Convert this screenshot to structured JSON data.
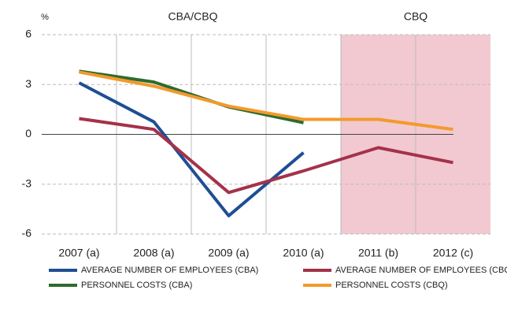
{
  "chart_data": {
    "type": "line",
    "y_unit": "%",
    "region_labels": [
      "CBA/CBQ",
      "CBQ"
    ],
    "categories": [
      "2007 (a)",
      "2008 (a)",
      "2009 (a)",
      "2010 (a)",
      "2011 (b)",
      "2012 (c)"
    ],
    "series": [
      {
        "name": "AVERAGE NUMBER OF EMPLOYEES (CBA)",
        "color": "#1f4e94",
        "values": [
          3.1,
          0.75,
          -4.9,
          -1.1,
          null,
          null
        ]
      },
      {
        "name": "AVERAGE NUMBER OF EMPLOYEES (CBQ)",
        "color": "#a3324a",
        "values": [
          0.95,
          0.3,
          -3.5,
          -2.2,
          -0.8,
          -1.7
        ]
      },
      {
        "name": "PERSONNEL COSTS (CBA)",
        "color": "#2e6b2e",
        "values": [
          3.8,
          3.15,
          1.65,
          0.7,
          null,
          null
        ]
      },
      {
        "name": "PERSONNEL COSTS (CBQ)",
        "color": "#f39a2c",
        "values": [
          3.75,
          2.9,
          1.7,
          0.9,
          0.9,
          0.3
        ]
      }
    ],
    "ylim": [
      -6,
      6
    ],
    "yticks": [
      -6,
      -3,
      0,
      3,
      6
    ],
    "grid": true
  }
}
